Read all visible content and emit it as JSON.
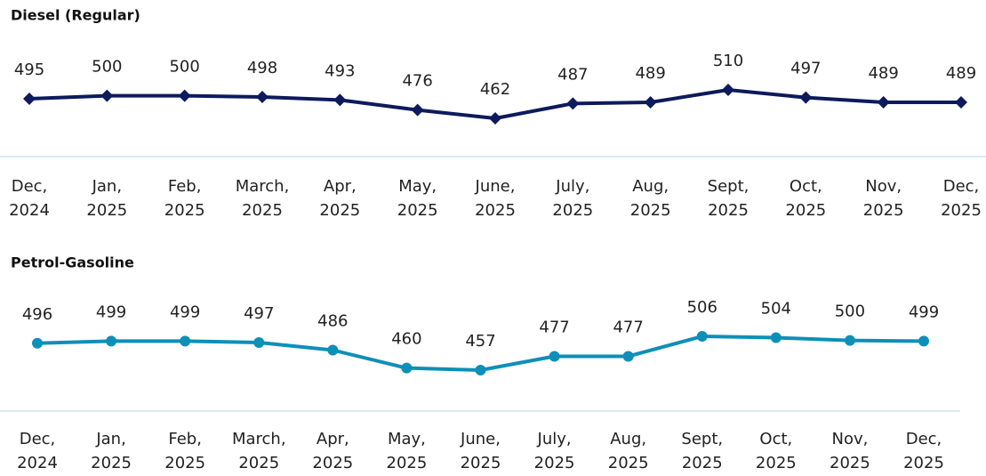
{
  "chart_data": [
    {
      "type": "line",
      "title": "Diesel (Regular)",
      "color": "#0d1a5c",
      "marker": "diamond",
      "categories": [
        [
          "Dec,",
          "2024"
        ],
        [
          "Jan,",
          "2025"
        ],
        [
          "Feb,",
          "2025"
        ],
        [
          "March,",
          "2025"
        ],
        [
          "Apr,",
          "2025"
        ],
        [
          "May,",
          "2025"
        ],
        [
          "June,",
          "2025"
        ],
        [
          "July,",
          "2025"
        ],
        [
          "Aug,",
          "2025"
        ],
        [
          "Sept,",
          "2025"
        ],
        [
          "Oct,",
          "2025"
        ],
        [
          "Nov,",
          "2025"
        ],
        [
          "Dec,",
          "2025"
        ]
      ],
      "values": [
        495,
        500,
        500,
        498,
        493,
        476,
        462,
        487,
        489,
        510,
        497,
        489,
        489
      ]
    },
    {
      "type": "line",
      "title": "Petrol-Gasoline",
      "color": "#0e8fb8",
      "marker": "circle",
      "categories": [
        [
          "Dec,",
          "2024"
        ],
        [
          "Jan,",
          "2025"
        ],
        [
          "Feb,",
          "2025"
        ],
        [
          "March,",
          "2025"
        ],
        [
          "Apr,",
          "2025"
        ],
        [
          "May,",
          "2025"
        ],
        [
          "June,",
          "2025"
        ],
        [
          "July,",
          "2025"
        ],
        [
          "Aug,",
          "2025"
        ],
        [
          "Sept,",
          "2025"
        ],
        [
          "Oct,",
          "2025"
        ],
        [
          "Nov,",
          "2025"
        ],
        [
          "Dec,",
          "2025"
        ]
      ],
      "values": [
        496,
        499,
        499,
        497,
        486,
        460,
        457,
        477,
        477,
        506,
        504,
        500,
        499
      ]
    }
  ]
}
